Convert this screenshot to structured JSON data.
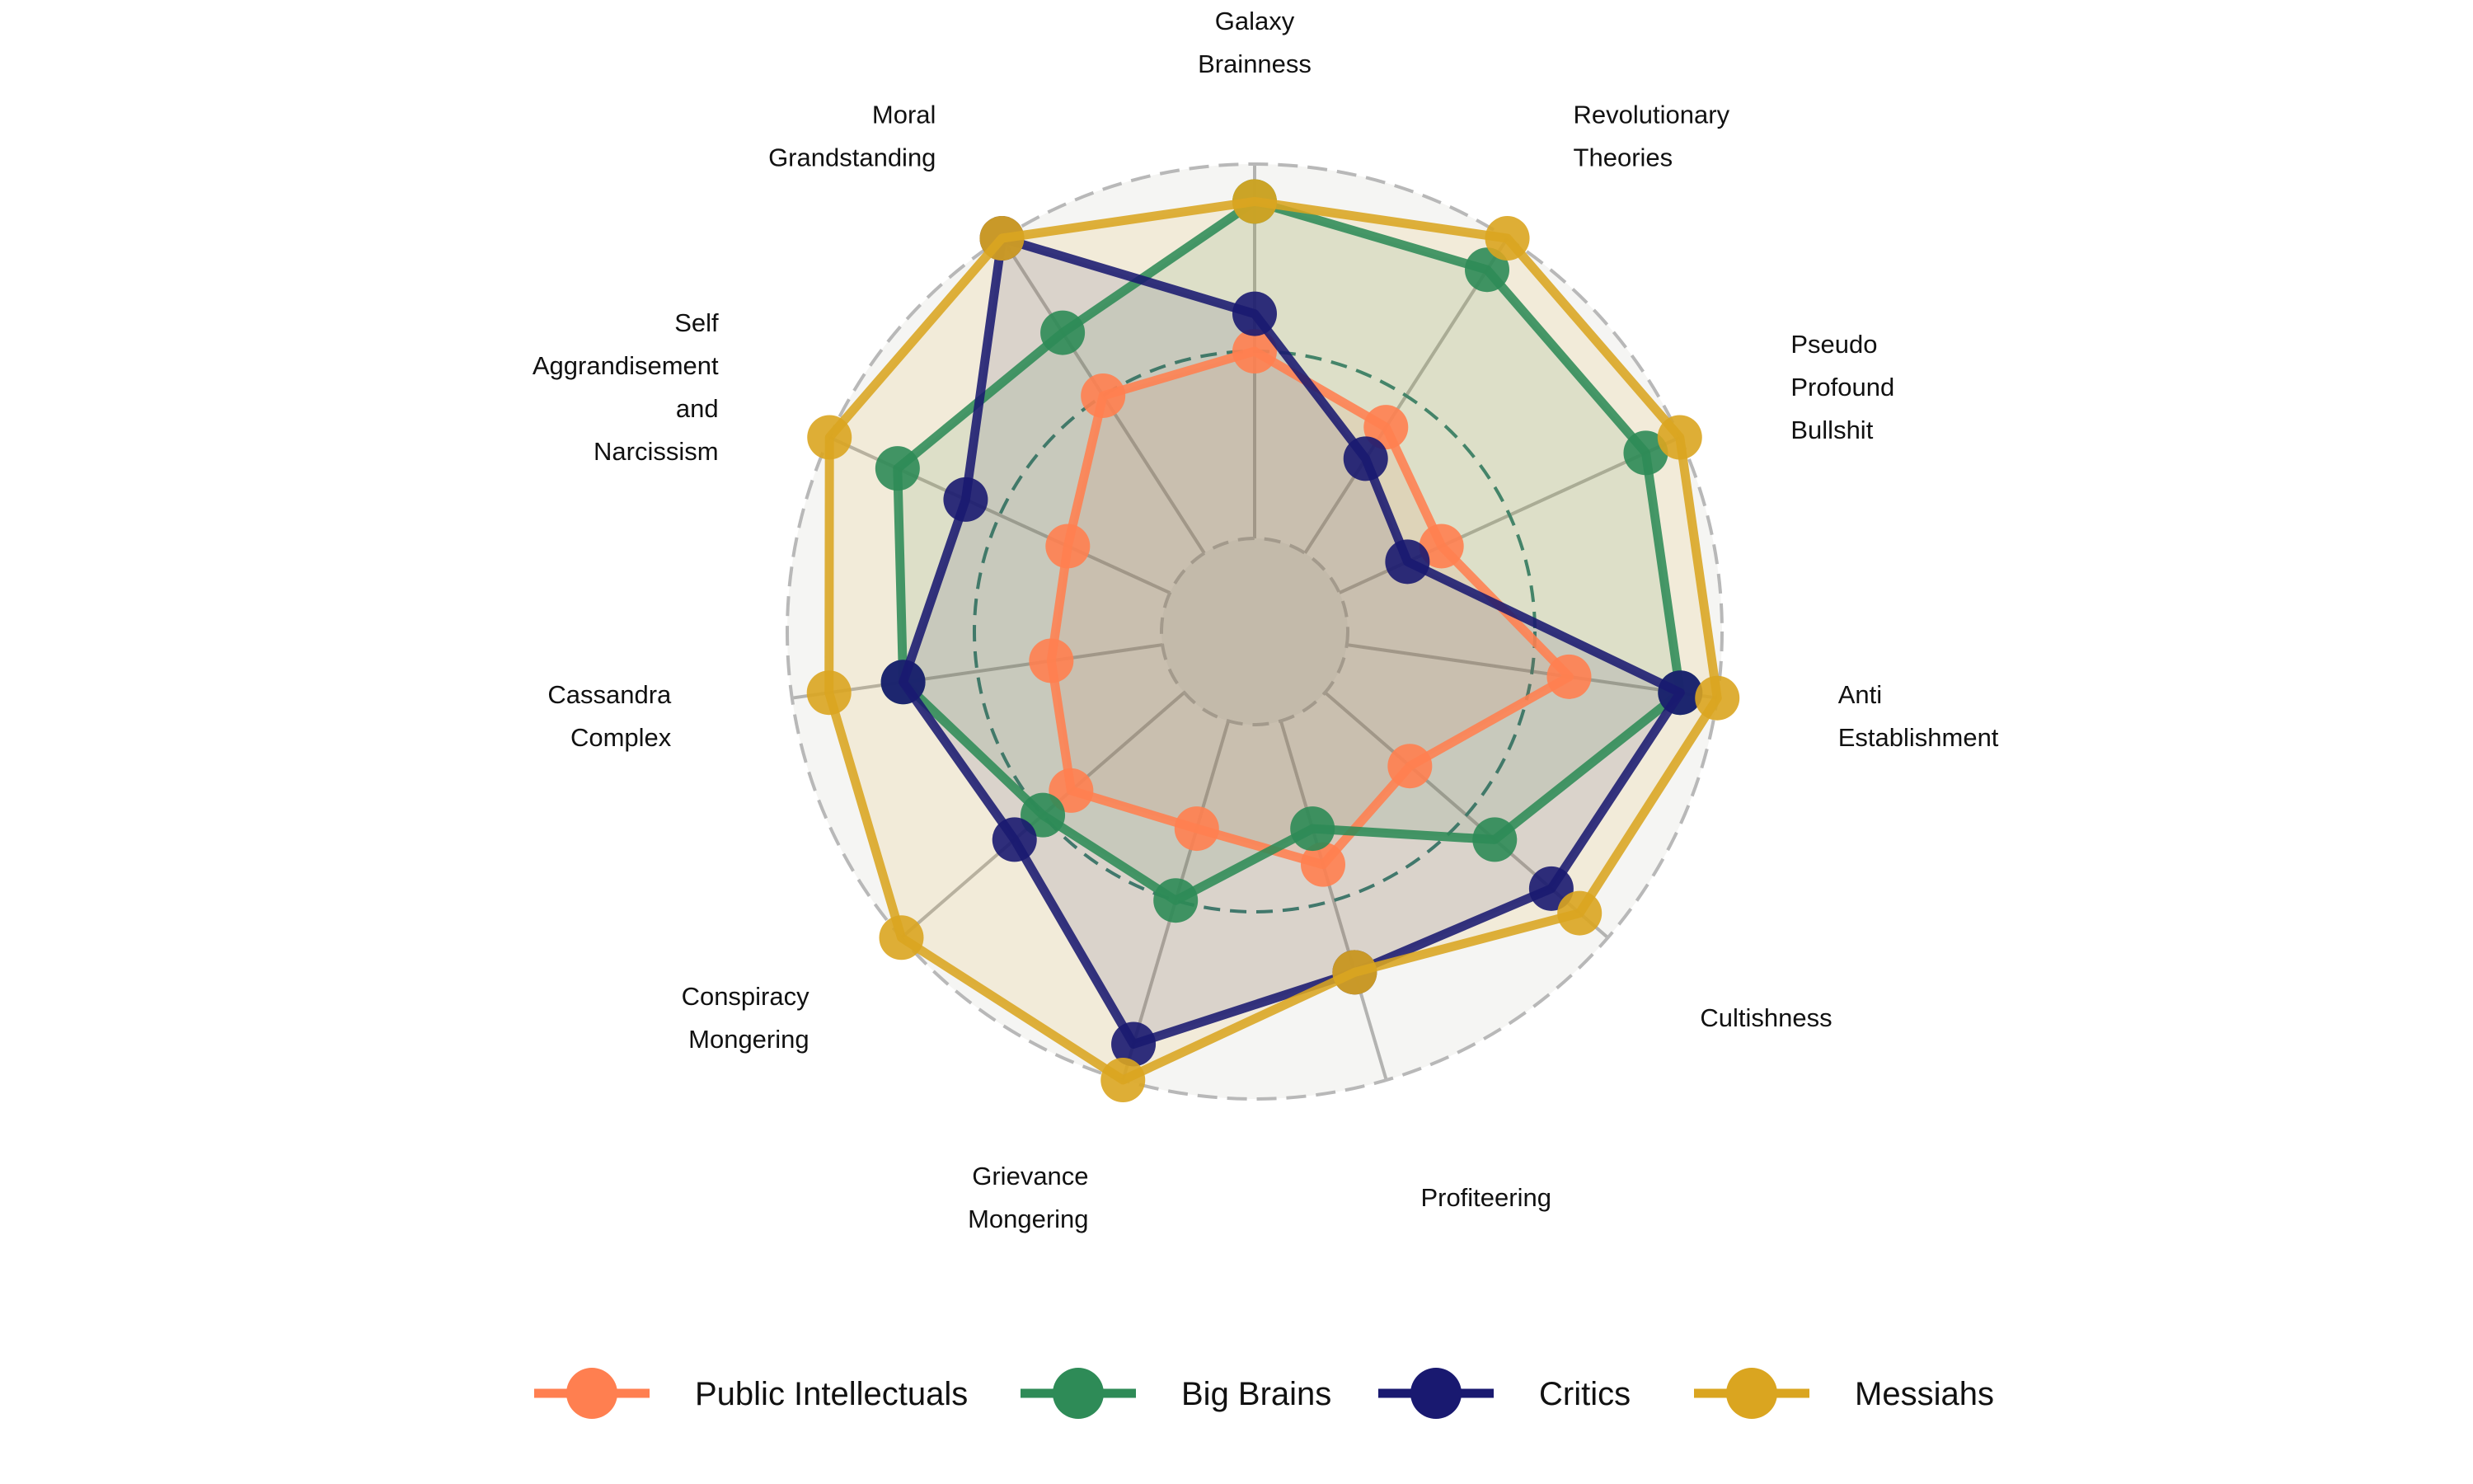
{
  "chart_data": {
    "type": "radar",
    "title": "",
    "axes": [
      [
        "Galaxy",
        "Brainness"
      ],
      [
        "Revolutionary",
        "Theories"
      ],
      [
        "Pseudo",
        "Profound",
        "Bullshit"
      ],
      [
        "Anti",
        "Establishment"
      ],
      [
        "Cultishness"
      ],
      [
        "Profiteering"
      ],
      [
        "Grievance",
        "Mongering"
      ],
      [
        "Conspiracy",
        "Mongering"
      ],
      [
        "Cassandra",
        "Complex"
      ],
      [
        "Self",
        "Aggrandisement",
        "and",
        "Narcissism"
      ],
      [
        "Moral",
        "Grandstanding"
      ]
    ],
    "rlim": [
      0,
      10
    ],
    "reference_circles": [
      3,
      10
    ],
    "series": [
      {
        "name": "Public Intellectuals",
        "color": "#FF7F50",
        "fill_opacity": 0.12,
        "values": [
          5,
          4,
          3,
          6,
          3,
          4,
          3,
          4,
          3,
          3,
          5
        ]
      },
      {
        "name": "Big Brains",
        "color": "#2E8B57",
        "fill_opacity": 0.12,
        "values": [
          9,
          9,
          9,
          9,
          6,
          3,
          5,
          5,
          7,
          8,
          7
        ]
      },
      {
        "name": "Critics",
        "color": "#191970",
        "fill_opacity": 0.12,
        "values": [
          6,
          3,
          2,
          9,
          8,
          7,
          9,
          6,
          7,
          6,
          10
        ]
      },
      {
        "name": "Messiahs",
        "color": "#DAA520",
        "fill_opacity": 0.12,
        "values": [
          9,
          10,
          10,
          10,
          9,
          7,
          10,
          10,
          9,
          10,
          10
        ]
      }
    ],
    "legend": {
      "position": "bottom",
      "entries": [
        "Public Intellectuals",
        "Big Brains",
        "Critics",
        "Messiahs"
      ]
    },
    "grid": true
  }
}
